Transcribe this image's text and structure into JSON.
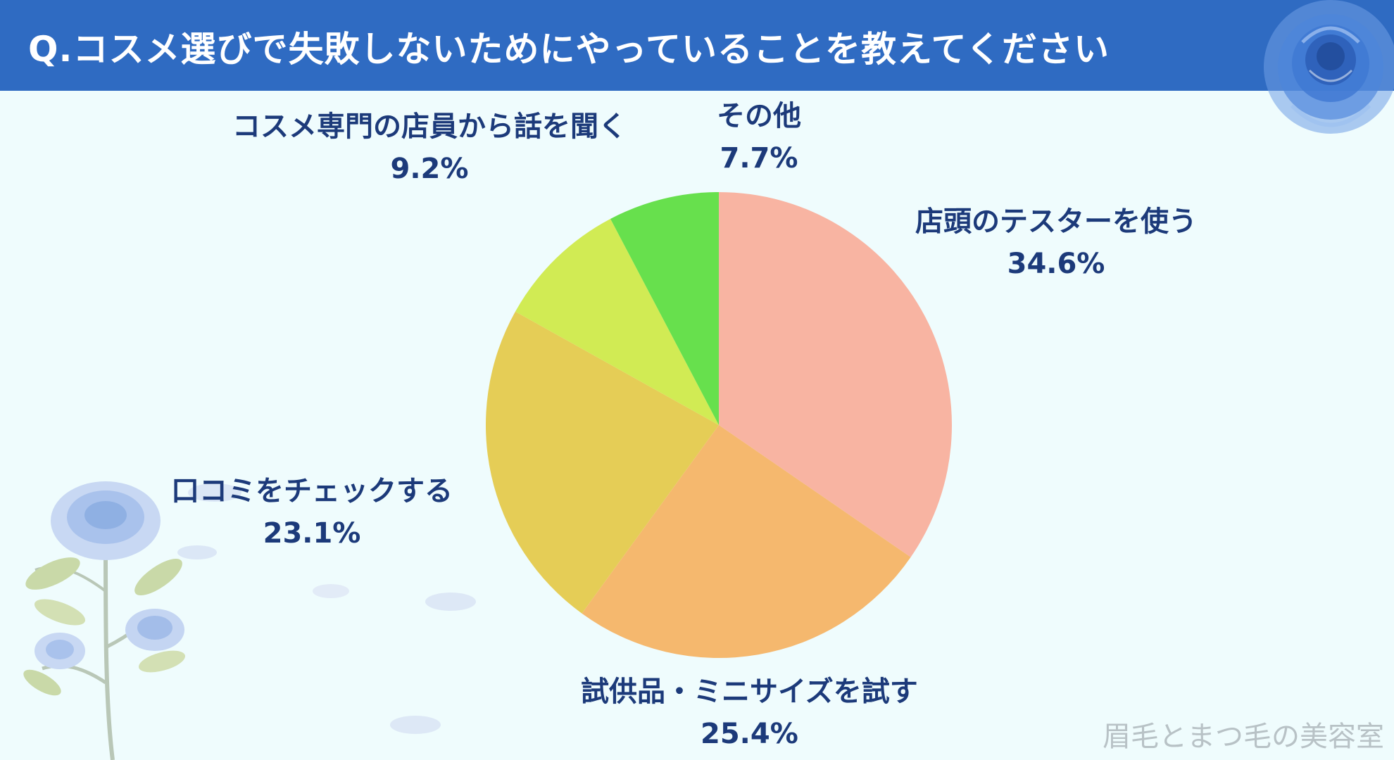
{
  "title": "Q.コスメ選びで失敗しないためにやっていることを教えてください",
  "watermark": "眉毛とまつ毛の美容室",
  "chart_data": {
    "type": "pie",
    "title": "",
    "slices": [
      {
        "label": "店頭のテスターを使う",
        "value": 34.6,
        "pct_text": "34.6%",
        "color": "#f8b4a2"
      },
      {
        "label": "試供品・ミニサイズを試す",
        "value": 25.4,
        "pct_text": "25.4%",
        "color": "#f5b86e"
      },
      {
        "label": "口コミをチェックする",
        "value": 23.1,
        "pct_text": "23.1%",
        "color": "#e5cd56"
      },
      {
        "label": "コスメ専門の店員から話を聞く",
        "value": 9.2,
        "pct_text": "9.2%",
        "color": "#d1eb54"
      },
      {
        "label": "その他",
        "value": 7.7,
        "pct_text": "7.7%",
        "color": "#67e04d"
      }
    ],
    "start": "12 o'clock",
    "direction": "clockwise"
  },
  "colors": {
    "title_bar": "#2f6bc2",
    "background": "#effcfd",
    "label_text": "#1c3a7a"
  },
  "decorations": [
    "rose-icon",
    "rose-branch-illustration"
  ]
}
